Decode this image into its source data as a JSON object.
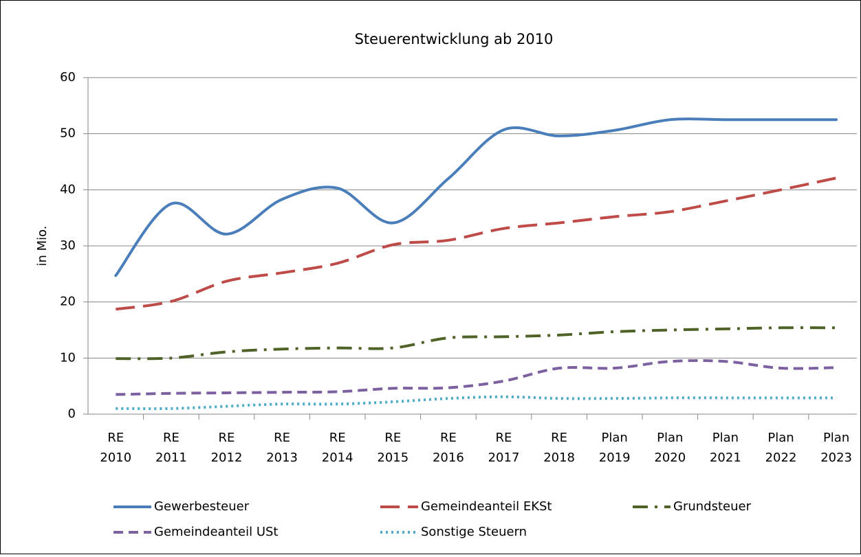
{
  "chart_data": {
    "type": "line",
    "title": "Steuerentwicklung ab 2010",
    "y_label": "in Mio.",
    "categories": [
      "RE 2010",
      "RE 2011",
      "RE 2012",
      "RE 2013",
      "RE 2014",
      "RE 2015",
      "RE 2016",
      "RE 2017",
      "RE 2018",
      "Plan 2019",
      "Plan 2020",
      "Plan 2021",
      "Plan 2022",
      "Plan 2023"
    ],
    "ylim": [
      0,
      60
    ],
    "yticks": [
      0,
      10,
      20,
      30,
      40,
      50,
      60
    ],
    "grid": true,
    "smooth": true,
    "legend": "bottom",
    "series": [
      {
        "name": "Gewerbesteuer",
        "color": "#4a7ebb",
        "dash": "solid",
        "values": [
          24.7,
          37.5,
          32.1,
          38.3,
          40.3,
          34.1,
          42,
          50.7,
          49.6,
          50.6,
          52.5,
          52.5,
          52.5,
          52.5
        ]
      },
      {
        "name": "Gemeindeanteil EKSt",
        "color": "#be4b48",
        "dash": "longdash",
        "values": [
          18.7,
          20.1,
          23.7,
          25.2,
          26.9,
          30.2,
          31,
          33.1,
          34.1,
          35.2,
          36.1,
          38,
          40,
          42.1
        ]
      },
      {
        "name": "Grundsteuer",
        "color": "#4f6228",
        "dash": "dashdotdot",
        "values": [
          9.9,
          10,
          11.1,
          11.6,
          11.8,
          11.8,
          13.6,
          13.8,
          14.1,
          14.7,
          15,
          15.2,
          15.4,
          15.4
        ]
      },
      {
        "name": "Gemeindeanteil USt",
        "color": "#7d60a0",
        "dash": "dashed",
        "values": [
          3.5,
          3.7,
          3.8,
          3.9,
          4,
          4.6,
          4.7,
          5.9,
          8.2,
          8.2,
          9.4,
          9.4,
          8.2,
          8.3
        ]
      },
      {
        "name": "Sonstige Steuern",
        "color": "#4bacc6",
        "dash": "dotted",
        "values": [
          1,
          1,
          1.4,
          1.8,
          1.8,
          2.2,
          2.8,
          3.1,
          2.8,
          2.8,
          2.9,
          2.9,
          2.9,
          2.9
        ]
      }
    ]
  }
}
